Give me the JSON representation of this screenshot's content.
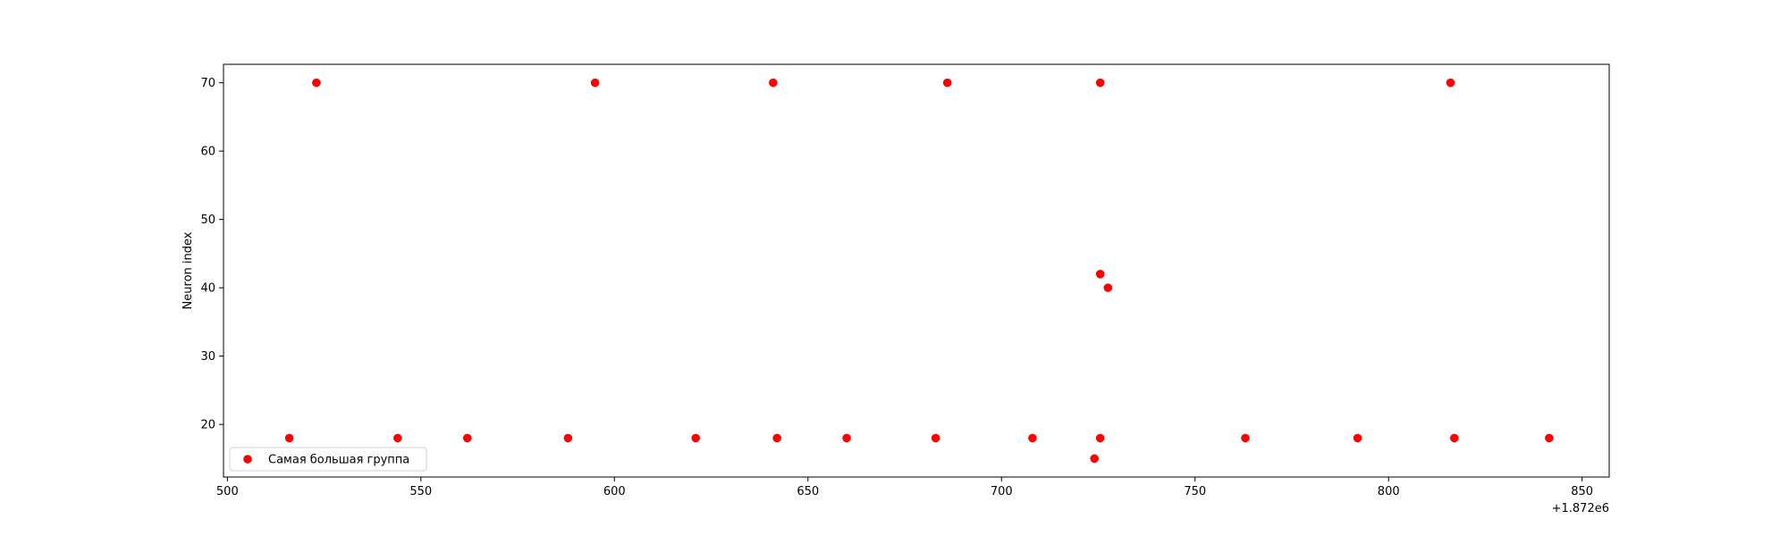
{
  "chart_data": {
    "type": "scatter",
    "title": "",
    "xlabel": "",
    "ylabel": "Neuron index",
    "x_offset_label": "+1.872e6",
    "xlim": [
      499,
      857
    ],
    "ylim": [
      12.3,
      72.7
    ],
    "xticks": [
      500,
      550,
      600,
      650,
      700,
      750,
      800,
      850
    ],
    "yticks": [
      20,
      30,
      40,
      50,
      60,
      70
    ],
    "grid": false,
    "legend_position": "lower-left",
    "series": [
      {
        "name": "Самая большая группа",
        "color": "#ff0000",
        "points": [
          [
            516,
            18
          ],
          [
            523,
            70
          ],
          [
            544,
            18
          ],
          [
            562,
            18
          ],
          [
            588,
            18
          ],
          [
            595,
            70
          ],
          [
            621,
            18
          ],
          [
            641,
            70
          ],
          [
            642,
            18
          ],
          [
            660,
            18
          ],
          [
            686,
            70
          ],
          [
            683,
            18
          ],
          [
            708,
            18
          ],
          [
            724,
            15
          ],
          [
            725.5,
            18
          ],
          [
            725.5,
            70
          ],
          [
            725.5,
            42
          ],
          [
            727.5,
            40
          ],
          [
            763,
            18
          ],
          [
            792,
            18
          ],
          [
            816,
            70
          ],
          [
            817,
            18
          ],
          [
            841.5,
            18
          ]
        ]
      }
    ]
  }
}
